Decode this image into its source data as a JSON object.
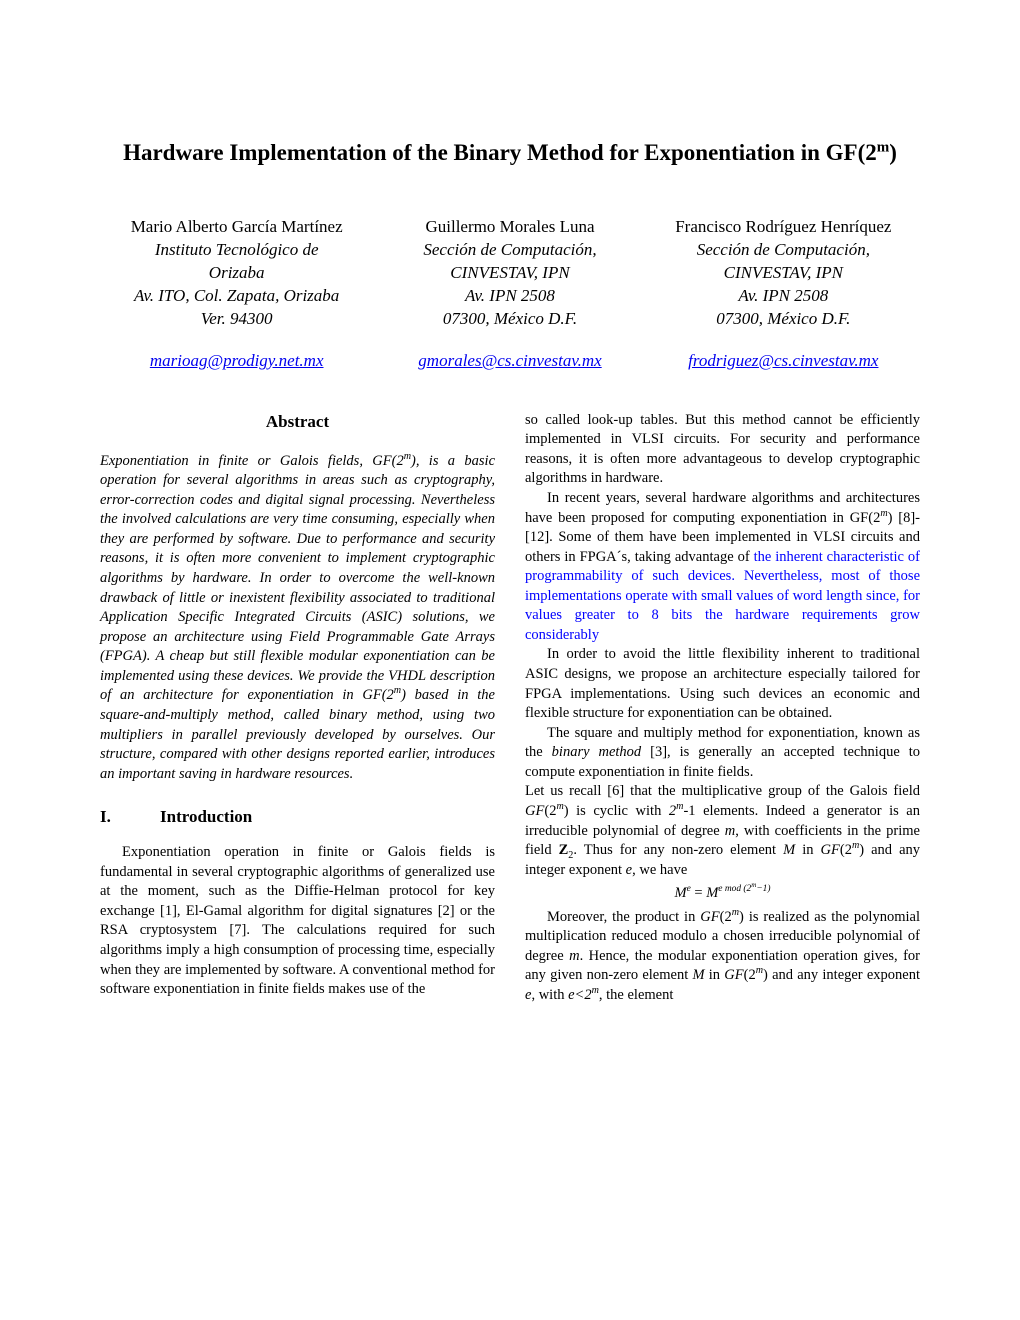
{
  "title_pre": "Hardware Implementation of the Binary Method for Exponentiation in GF(2",
  "title_sup": "m",
  "title_post": ")",
  "authors": [
    {
      "name": "Mario Alberto García Martínez",
      "affil1": "Instituto Tecnológico de",
      "affil2": "Orizaba",
      "addr1": "Av. ITO, Col. Zapata, Orizaba",
      "addr2": "Ver. 94300",
      "email": "marioag@prodigy.net.mx"
    },
    {
      "name": "Guillermo Morales Luna",
      "affil1": "Sección de Computación,",
      "affil2": "CINVESTAV, IPN",
      "addr1": "Av. IPN 2508",
      "addr2": "07300, México D.F.",
      "email": "gmorales@cs.cinvestav.mx"
    },
    {
      "name": "Francisco Rodríguez Henríquez",
      "affil1": "Sección de Computación,",
      "affil2": "CINVESTAV, IPN",
      "addr1": "Av. IPN 2508",
      "addr2": "07300, México D.F.",
      "email": "frodriguez@cs.cinvestav.mx"
    }
  ],
  "abstract_heading": "Abstract",
  "abstract_p1a": "Exponentiation in finite or Galois fields, GF(2",
  "abstract_p1b": "), is a basic operation for several algorithms in areas such as cryptography, error-correction codes and digital signal processing. Nevertheless the involved calculations are very time consuming, especially when they are performed by software. Due to performance and security reasons, it is often more convenient to implement cryptographic algorithms by hardware. In order to overcome the well-known drawback of little or inexistent flexibility associated to traditional Application Specific Integrated Circuits (ASIC) solutions, we propose an architecture using Field Programmable Gate Arrays (FPGA). A cheap but still flexible modular exponentiation can be implemented using these devices. We provide the VHDL description of an architecture for exponentiation in GF(2",
  "abstract_p1c": ") based in the square-and-multiply method, called binary method, using two multipliers in parallel previously developed by ourselves. Our structure, compared with other designs reported earlier, introduces an important saving in hardware resources.",
  "section1_num": "I.",
  "section1_title": "Introduction",
  "intro_p1": "Exponentiation operation in finite or Galois fields is fundamental in several cryptographic algorithms of generalized use at the moment, such as the Diffie-Helman protocol for key exchange [1], El-Gamal algorithm for digital signatures [2] or the RSA cryptosystem [7]. The calculations required for such algorithms imply a high consumption of processing time, especially when they are implemented by software. A conventional method for software exponentiation in finite fields makes use of the",
  "col2_p1": "so called look-up tables. But this method cannot be efficiently implemented in VLSI circuits. For security and performance reasons, it is often more advantageous to develop cryptographic algorithms in hardware.",
  "col2_p2a": "In recent years, several  hardware algorithms and architectures have been proposed  for computing exponentiation in GF(2",
  "col2_p2b": ") [8]-[12]. Some of them have been implemented in VLSI circuits and others in FPGA´s, taking advantage of ",
  "col2_p2_highlight": "the inherent characteristic of programmability of such devices. Nevertheless, most of those implementations operate with small values of word length since, for values greater to 8 bits the hardware requirements grow considerably",
  "col2_p3": "In order to avoid the little flexibility inherent to traditional ASIC designs, we propose an architecture especially tailored for FPGA implementations. Using such devices an economic and flexible structure for exponentiation can be obtained.",
  "col2_p4a": "The square and multiply method for exponentiation, known as the ",
  "col2_p4_italic": "binary method",
  "col2_p4b": " [3], is generally an accepted technique to compute exponentiation in finite fields.",
  "col2_p5a": "Let us recall [6] that the multiplicative group of the Galois field ",
  "col2_p5b": " is cyclic with ",
  "col2_p5c": "-1 elements. Indeed a generator is an irreducible polynomial of degree ",
  "col2_p5d": ", with coefficients in the prime field ",
  "col2_p5e": ". Thus for any non-zero element ",
  "col2_p5f": " in ",
  "col2_p5g": " and any integer exponent ",
  "col2_p5h": ", we have",
  "equation1_lhs": "M",
  "equation1_exp1": "e",
  "equation1_eq": " = ",
  "equation1_rhs": "M",
  "equation1_exp2a": "e mod (2",
  "equation1_exp2b": "m",
  "equation1_exp2c": "−1)",
  "col2_p6a": "Moreover, the product in ",
  "col2_p6b": " is realized as the polynomial multiplication reduced modulo a chosen irreducible polynomial of degree ",
  "col2_p6c": ". Hence, the modular exponentiation operation gives, for any given non-zero element ",
  "col2_p6d": " in ",
  "col2_p6e": " and any integer exponent  ",
  "col2_p6f": ", with ",
  "col2_p6g": ", the element",
  "sym_m": "m",
  "sym_M": "M",
  "sym_e": "e",
  "sym_GF": "GF",
  "sym_2": "2",
  "sym_Z": "Z",
  "sym_lt": "e<2"
}
